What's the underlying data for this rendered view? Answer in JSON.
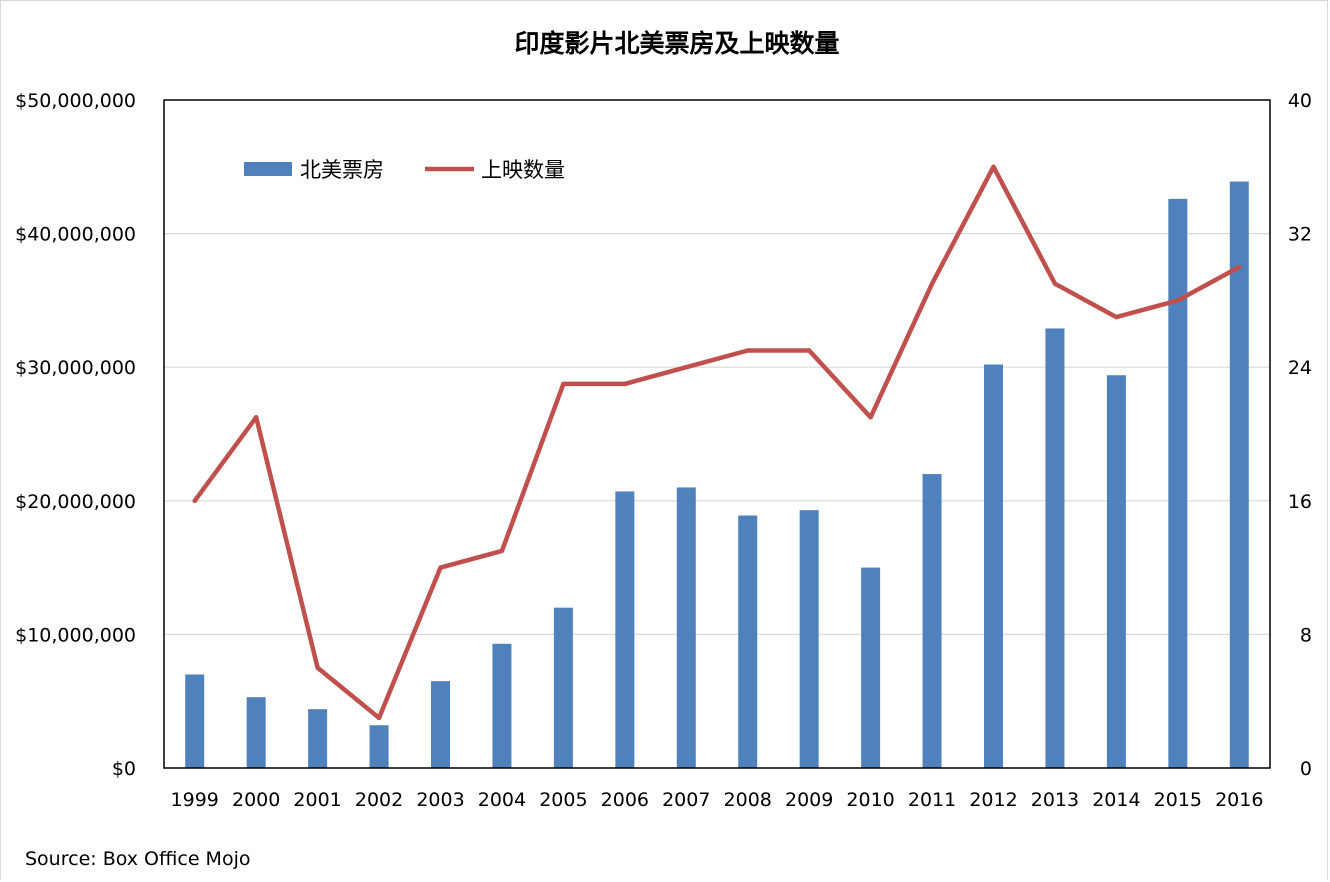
{
  "chart_data": {
    "type": "bar",
    "title": "印度影片北美票房及上映数量",
    "categories": [
      "1999",
      "2000",
      "2001",
      "2002",
      "2003",
      "2004",
      "2005",
      "2006",
      "2007",
      "2008",
      "2009",
      "2010",
      "2011",
      "2012",
      "2013",
      "2014",
      "2015",
      "2016"
    ],
    "series": [
      {
        "name": "北美票房",
        "type": "bar",
        "axis": "left",
        "color": "#4f81bd",
        "values": [
          7000000,
          5300000,
          4400000,
          3200000,
          6500000,
          9300000,
          12000000,
          20700000,
          21000000,
          18900000,
          19300000,
          15000000,
          22000000,
          30200000,
          32900000,
          29400000,
          42600000,
          43900000
        ]
      },
      {
        "name": "上映数量",
        "type": "line",
        "axis": "right",
        "color": "#c0504d",
        "values": [
          16,
          21,
          6,
          3,
          12,
          13,
          23,
          23,
          24,
          25,
          25,
          21,
          29,
          36,
          29,
          27,
          28,
          30
        ]
      }
    ],
    "y_left": {
      "lim": [
        0,
        50000000
      ],
      "ticks": [
        0,
        10000000,
        20000000,
        30000000,
        40000000,
        50000000
      ],
      "tick_labels": [
        "$0",
        "$10,000,000",
        "$20,000,000",
        "$30,000,000",
        "$40,000,000",
        "$50,000,000"
      ]
    },
    "y_right": {
      "lim": [
        0,
        40
      ],
      "ticks": [
        0,
        8,
        16,
        24,
        32,
        40
      ],
      "tick_labels": [
        "0",
        "8",
        "16",
        "24",
        "32",
        "40"
      ]
    },
    "grid": true,
    "legend_position": "top-left",
    "source": "Source: Box Office Mojo"
  }
}
